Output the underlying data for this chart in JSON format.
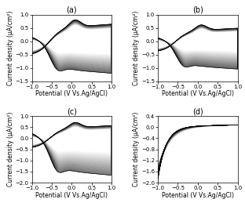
{
  "panels": [
    "(a)",
    "(b)",
    "(c)",
    "(d)"
  ],
  "xlabel": "Potential (V Vs.Ag/AgCl)",
  "ylabel": "Current density (μA/cm²)",
  "panel_a": {
    "xlim": [
      -1.0,
      1.0
    ],
    "ylim": [
      -1.5,
      1.0
    ],
    "yticks": [
      -1.5,
      -1.0,
      -0.5,
      0.0,
      0.5,
      1.0
    ],
    "xticks": [
      -1.0,
      -0.5,
      0.0,
      0.5,
      1.0
    ],
    "num_cycles": 50,
    "upper_max": 0.85,
    "upper_min": 0.65,
    "lower_max": -0.45,
    "lower_min": -1.15
  },
  "panel_b": {
    "xlim": [
      -1.0,
      1.0
    ],
    "ylim": [
      -1.5,
      1.0
    ],
    "yticks": [
      -1.5,
      -1.0,
      -0.5,
      0.0,
      0.5,
      1.0
    ],
    "xticks": [
      -1.0,
      -0.5,
      0.0,
      0.5,
      1.0
    ],
    "num_cycles": 50,
    "upper_max": 0.65,
    "upper_min": 0.5,
    "lower_max": -0.35,
    "lower_min": -1.0
  },
  "panel_c": {
    "xlim": [
      -1.0,
      1.0
    ],
    "ylim": [
      -2.0,
      1.0
    ],
    "yticks": [
      -2.0,
      -1.5,
      -1.0,
      -0.5,
      0.0,
      0.5,
      1.0
    ],
    "xticks": [
      -1.0,
      -0.5,
      0.0,
      0.5,
      1.0
    ],
    "num_cycles": 50,
    "upper_max": 0.75,
    "upper_min": 0.55,
    "lower_max": -0.6,
    "lower_min": -1.6
  },
  "panel_d": {
    "xlim": [
      -1.0,
      1.0
    ],
    "ylim": [
      -2.0,
      0.4
    ],
    "yticks": [
      -2.0,
      -1.6,
      -1.2,
      -0.8,
      -0.4,
      0.0,
      0.4
    ],
    "xticks": [
      -1.0,
      -0.5,
      0.0,
      0.5,
      1.0
    ],
    "num_cycles": 80
  },
  "background_color": "#ffffff",
  "title_fontsize": 7,
  "label_fontsize": 5.5,
  "tick_fontsize": 5
}
